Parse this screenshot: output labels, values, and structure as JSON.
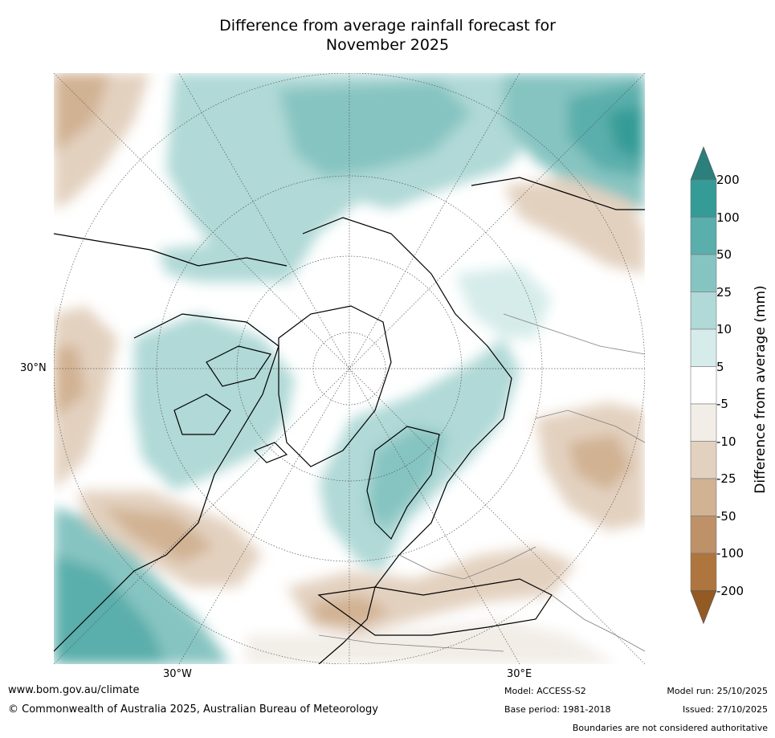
{
  "title": {
    "line1": "Difference from average rainfall forecast for",
    "line2": "November 2025"
  },
  "map": {
    "projection": "north-polar-stereographic",
    "labels": {
      "lat_30n": "30°N",
      "lon_30w": "30°W",
      "lon_30e": "30°E"
    }
  },
  "colorbar": {
    "title": "Difference from average (mm)",
    "ticks": [
      "200",
      "100",
      "50",
      "25",
      "10",
      "5",
      "-5",
      "-10",
      "-25",
      "-50",
      "-100",
      "-200"
    ],
    "colors": {
      "above_200": "#2b7f7c",
      "c100_200": "#349b96",
      "c50_100": "#5aaeab",
      "c25_50": "#86c4c1",
      "c10_25": "#b0d9d7",
      "c5_10": "#d6ecea",
      "neutral": "#ffffff",
      "cm5_m10": "#f2ede7",
      "cm10_m25": "#e3d1c0",
      "cm25_m50": "#d1b293",
      "cm50_m100": "#bf9168",
      "cm100_m200": "#ae753e",
      "below_m200": "#935a24"
    }
  },
  "footer": {
    "url": "www.bom.gov.au/climate",
    "copyright": "© Commonwealth of Australia 2025, Australian Bureau of Meteorology",
    "model": "Model: ACCESS-S2",
    "base_period": "Base period: 1981-2018",
    "model_run": "Model run: 25/10/2025",
    "issued": "Issued: 27/10/2025",
    "disclaimer": "Boundaries are not considered authoritative"
  }
}
